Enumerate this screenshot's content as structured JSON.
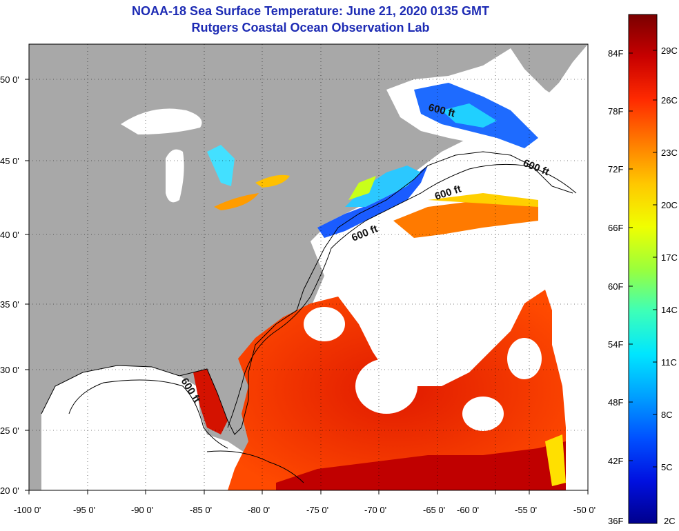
{
  "header": {
    "title": "NOAA-18 Sea Surface Temperature:  June 21, 2020 0135 GMT",
    "subtitle": "Rutgers Coastal Ocean Observation Lab"
  },
  "map": {
    "longitude_ticks": [
      "-100 0'",
      "-95 0'",
      "-90 0'",
      "-85 0'",
      "-80 0'",
      "-75 0'",
      "-70 0'",
      "-65 0'",
      "-60 0'",
      "-55 0'",
      "-50 0'"
    ],
    "latitude_ticks": [
      "20 0'",
      "25 0'",
      "30 0'",
      "35 0'",
      "40 0'",
      "45 0'",
      "50 0'"
    ],
    "isobath_label": "600 ft",
    "colors": {
      "land": "#a8a8a8",
      "cloud": "#ffffff",
      "frame": "#000000"
    }
  },
  "colorbar": {
    "fahrenheit_labels": [
      "84F",
      "78F",
      "72F",
      "66F",
      "60F",
      "54F",
      "48F",
      "42F",
      "36F"
    ],
    "celsius_labels": [
      "29C",
      "26C",
      "23C",
      "20C",
      "17C",
      "14C",
      "11C",
      "8C",
      "5C",
      "2C"
    ],
    "gradient": [
      "#7a0000",
      "#c80000",
      "#ff2a00",
      "#ff7a00",
      "#ffc800",
      "#f0ff00",
      "#9bff3b",
      "#3dffb8",
      "#00e6ff",
      "#00a0ff",
      "#0050ff",
      "#0010e0",
      "#00008c"
    ]
  }
}
